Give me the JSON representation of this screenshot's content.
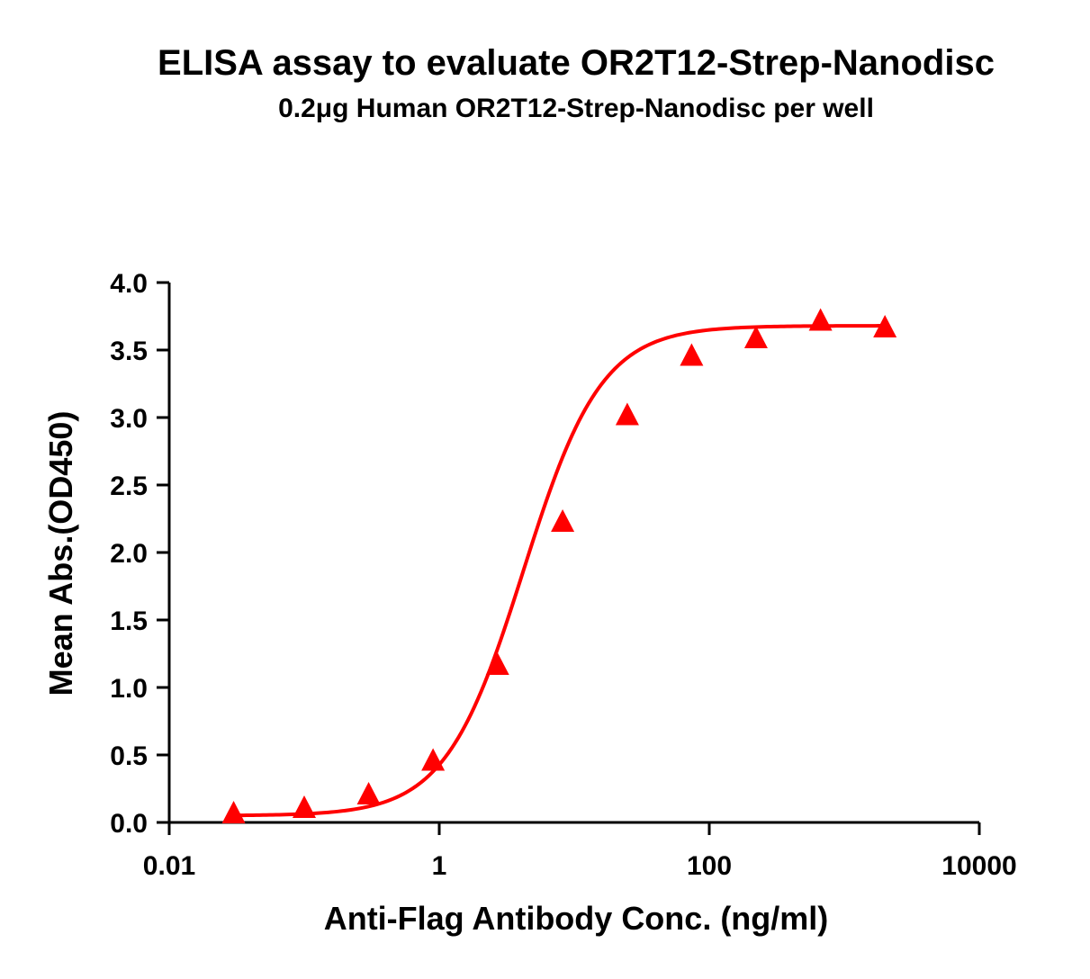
{
  "chart_data": {
    "type": "scatter",
    "title": "ELISA assay to evaluate OR2T12-Strep-Nanodisc",
    "subtitle": "0.2μg Human OR2T12-Strep-Nanodisc per well",
    "xlabel": "Anti-Flag Antibody Conc. (ng/ml)",
    "ylabel": "Mean Abs.(OD450)",
    "x_scale": "log",
    "xlim": [
      0.01,
      10000
    ],
    "ylim": [
      0,
      4.0
    ],
    "x_ticks": [
      0.01,
      1,
      100,
      10000
    ],
    "x_tick_labels": [
      "0.01",
      "1",
      "100",
      "10000"
    ],
    "y_ticks": [
      0,
      0.5,
      1.0,
      1.5,
      2.0,
      2.5,
      3.0,
      3.5,
      4.0
    ],
    "y_tick_labels": [
      "0.0",
      "0.5",
      "1.0",
      "1.5",
      "2.0",
      "2.5",
      "3.0",
      "3.5",
      "4.0"
    ],
    "grid": false,
    "legend": "none",
    "series": [
      {
        "color": "#ff0000",
        "marker": "triangle",
        "fit": "4PL",
        "x": [
          0.03,
          0.1,
          0.3,
          0.9,
          2.7,
          8.2,
          24.7,
          74,
          222,
          667,
          2000
        ],
        "y": [
          0.06,
          0.1,
          0.2,
          0.45,
          1.16,
          2.22,
          3.01,
          3.45,
          3.58,
          3.71,
          3.66
        ]
      }
    ]
  }
}
